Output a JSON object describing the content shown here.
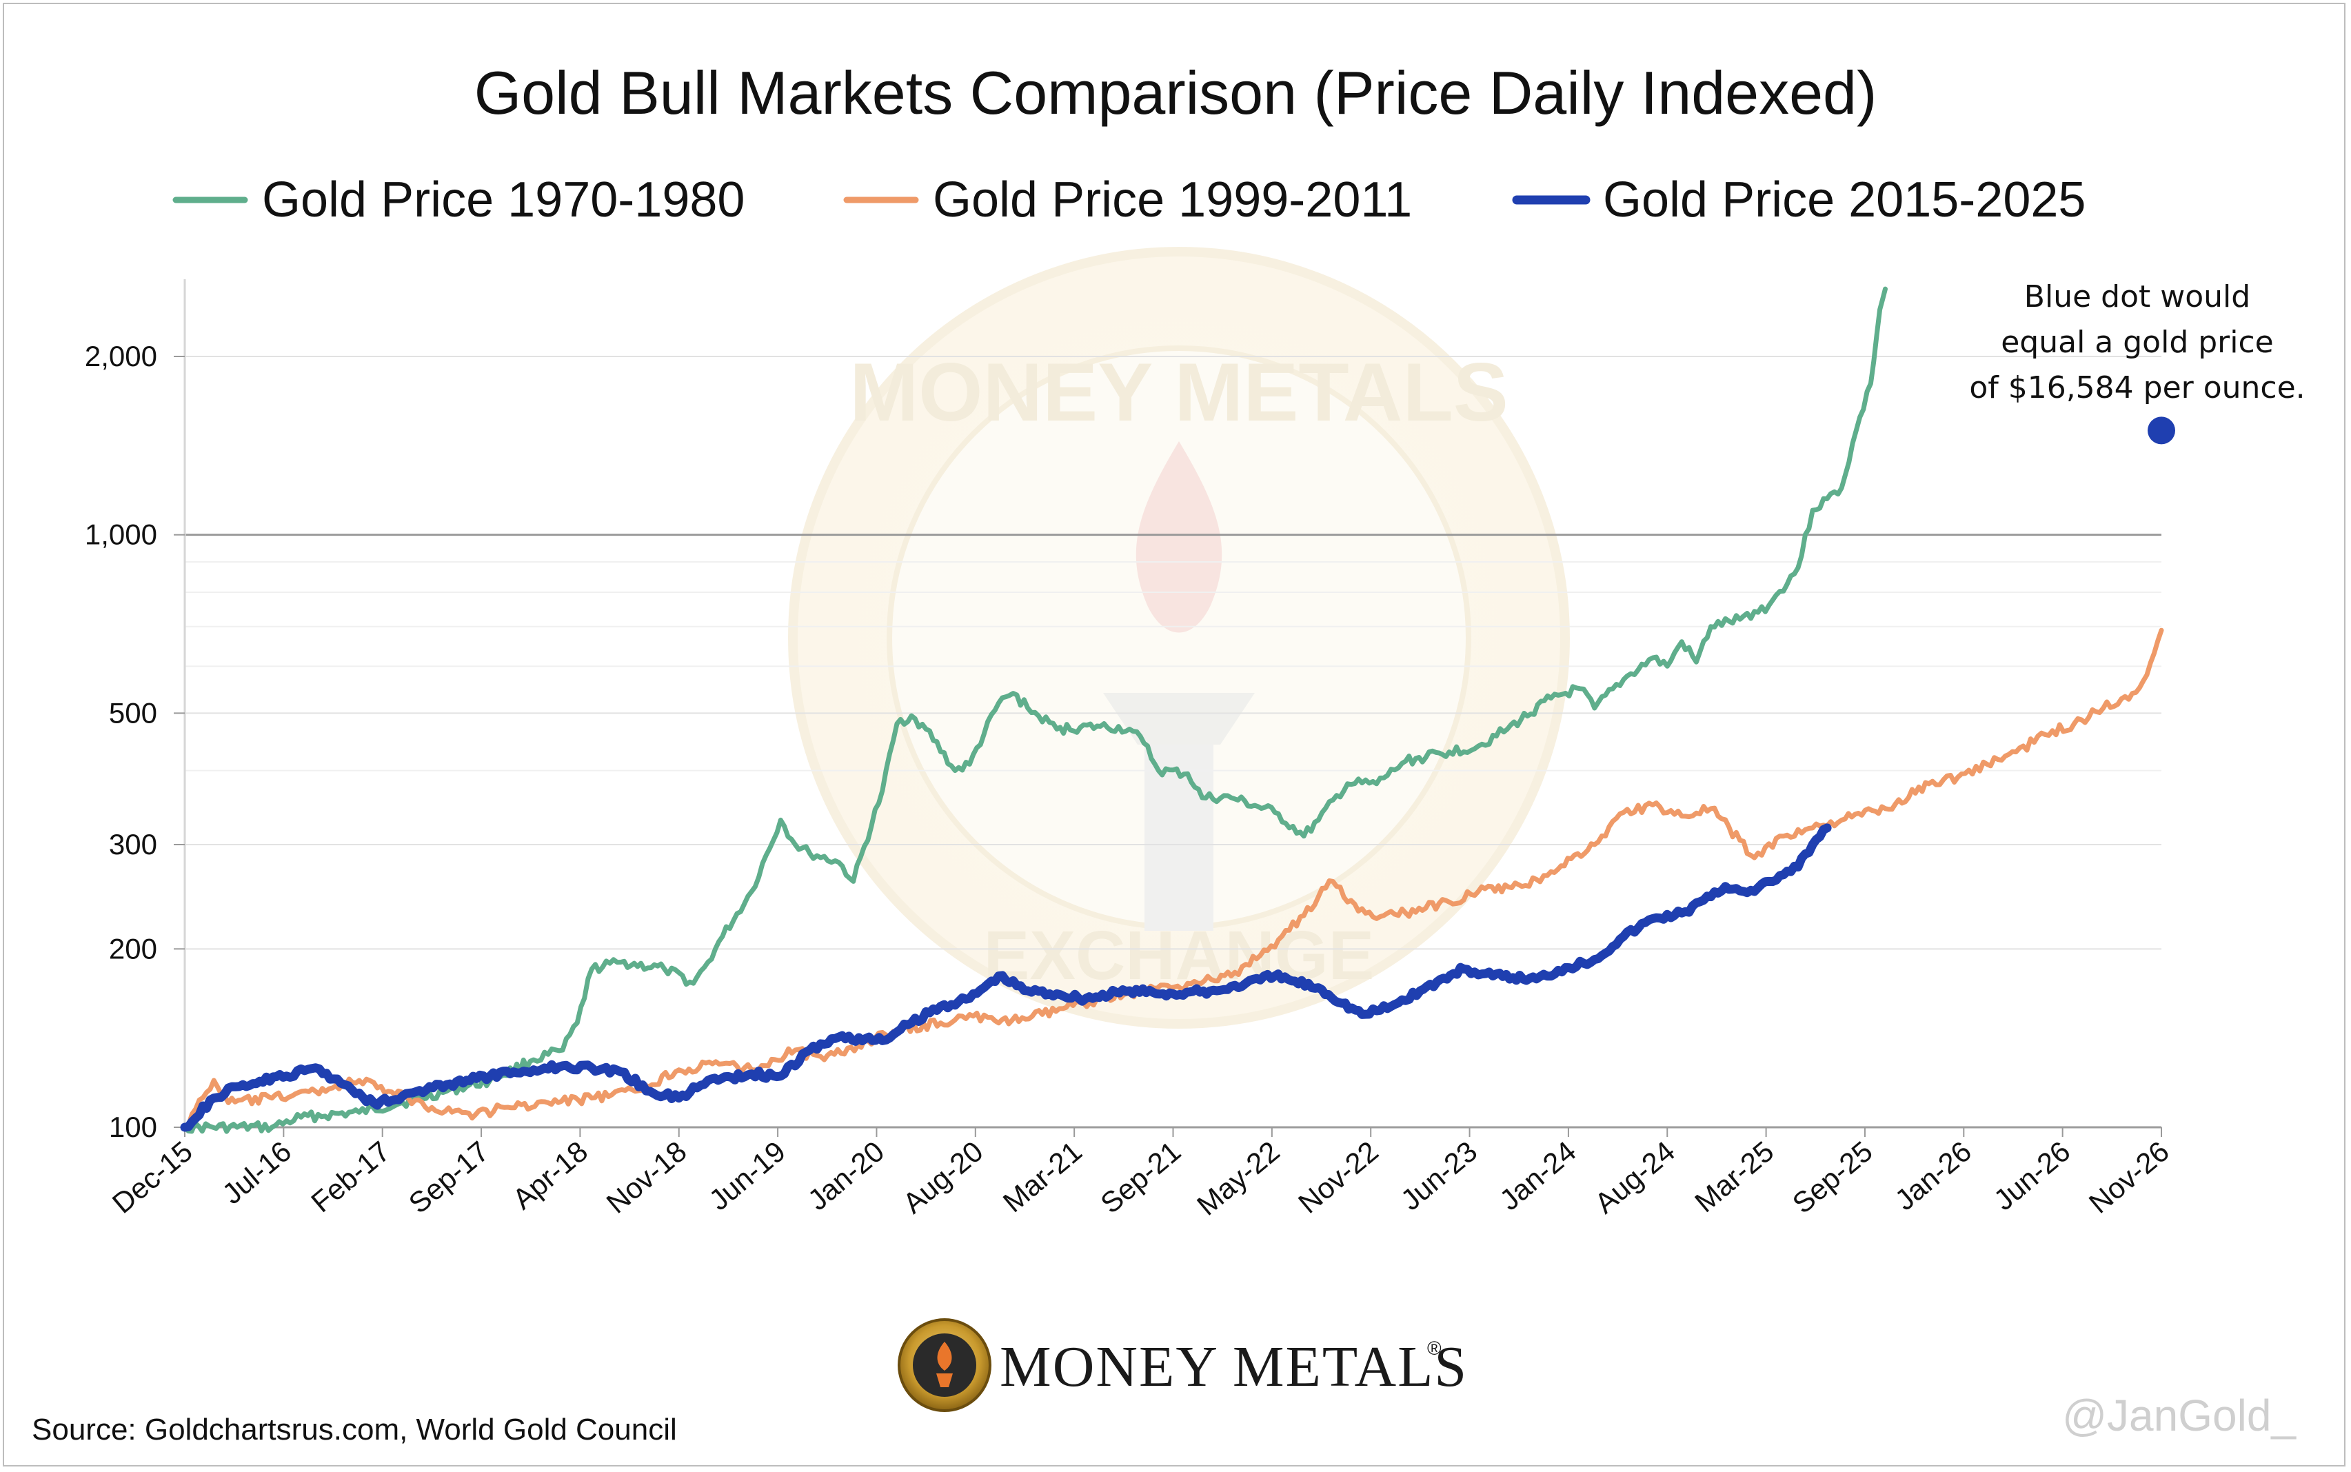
{
  "chart_data": {
    "type": "line",
    "title": "Gold Bull Markets Comparison (Price Daily Indexed)",
    "yscale": "log",
    "ylim": [
      100,
      2700
    ],
    "y_ticks": [
      100,
      200,
      300,
      500,
      1000,
      2000
    ],
    "y_tick_labels": [
      "100",
      "200",
      "300",
      "500",
      "1,000",
      "2,000"
    ],
    "x_tick_labels": [
      "Dec-15",
      "Jul-16",
      "Feb-17",
      "Sep-17",
      "Apr-18",
      "Nov-18",
      "Jun-19",
      "Jan-20",
      "Aug-20",
      "Mar-21",
      "Sep-21",
      "May-22",
      "Nov-22",
      "Jun-23",
      "Jan-24",
      "Aug-24",
      "Mar-25",
      "Sep-25",
      "Jan-26",
      "Jun-26",
      "Nov-26"
    ],
    "x_range": [
      "2015-12",
      "2027-04"
    ],
    "legend_position": "top",
    "grid": true,
    "series": [
      {
        "name": "Gold Price 1970-1980",
        "color": "#5fae8c",
        "points": [
          [
            "2015-12",
            100
          ],
          [
            "2016-06",
            100
          ],
          [
            "2016-08",
            104
          ],
          [
            "2016-12",
            106
          ],
          [
            "2017-03",
            110
          ],
          [
            "2017-06",
            115
          ],
          [
            "2017-09",
            120
          ],
          [
            "2017-12",
            130
          ],
          [
            "2018-02",
            135
          ],
          [
            "2018-03",
            150
          ],
          [
            "2018-04",
            185
          ],
          [
            "2018-06",
            190
          ],
          [
            "2018-09",
            185
          ],
          [
            "2018-11",
            175
          ],
          [
            "2018-12",
            190
          ],
          [
            "2019-01",
            210
          ],
          [
            "2019-03",
            250
          ],
          [
            "2019-05",
            330
          ],
          [
            "2019-06",
            300
          ],
          [
            "2019-07",
            290
          ],
          [
            "2019-09",
            280
          ],
          [
            "2019-10",
            260
          ],
          [
            "2019-12",
            370
          ],
          [
            "2020-01",
            480
          ],
          [
            "2020-02",
            495
          ],
          [
            "2020-03",
            470
          ],
          [
            "2020-05",
            400
          ],
          [
            "2020-06",
            410
          ],
          [
            "2020-08",
            520
          ],
          [
            "2020-09",
            540
          ],
          [
            "2020-10",
            510
          ],
          [
            "2020-12",
            470
          ],
          [
            "2021-03",
            475
          ],
          [
            "2021-05",
            470
          ],
          [
            "2021-06",
            445
          ],
          [
            "2021-07",
            400
          ],
          [
            "2021-09",
            395
          ],
          [
            "2021-10",
            360
          ],
          [
            "2021-12",
            360
          ],
          [
            "2022-03",
            340
          ],
          [
            "2022-05",
            310
          ],
          [
            "2022-06",
            330
          ],
          [
            "2022-08",
            380
          ],
          [
            "2022-10",
            380
          ],
          [
            "2022-12",
            415
          ],
          [
            "2023-03",
            430
          ],
          [
            "2023-05",
            440
          ],
          [
            "2023-07",
            470
          ],
          [
            "2023-10",
            530
          ],
          [
            "2023-12",
            550
          ],
          [
            "2024-01",
            510
          ],
          [
            "2024-03",
            570
          ],
          [
            "2024-05",
            620
          ],
          [
            "2024-06",
            600
          ],
          [
            "2024-07",
            660
          ],
          [
            "2024-08",
            610
          ],
          [
            "2024-09",
            700
          ],
          [
            "2024-11",
            720
          ],
          [
            "2025-01",
            760
          ],
          [
            "2025-03",
            880
          ],
          [
            "2025-04",
            1100
          ],
          [
            "2025-05",
            1150
          ],
          [
            "2025-06",
            1200
          ],
          [
            "2025-07",
            1500
          ],
          [
            "2025-08",
            1800
          ],
          [
            "2025-08-20",
            2400
          ],
          [
            "2025-09-01",
            2600
          ]
        ]
      },
      {
        "name": "Gold Price 1999-2011",
        "color": "#ef9a68",
        "points": [
          [
            "2015-12",
            100
          ],
          [
            "2016-02",
            120
          ],
          [
            "2016-03",
            110
          ],
          [
            "2016-06",
            112
          ],
          [
            "2016-09",
            115
          ],
          [
            "2016-12",
            120
          ],
          [
            "2017-02",
            115
          ],
          [
            "2017-05",
            108
          ],
          [
            "2017-08",
            105
          ],
          [
            "2017-10",
            108
          ],
          [
            "2018-01",
            110
          ],
          [
            "2018-04",
            112
          ],
          [
            "2018-07",
            115
          ],
          [
            "2018-10",
            125
          ],
          [
            "2019-01",
            128
          ],
          [
            "2019-03",
            125
          ],
          [
            "2019-06",
            135
          ],
          [
            "2019-08",
            130
          ],
          [
            "2019-11",
            140
          ],
          [
            "2020-01",
            145
          ],
          [
            "2020-04",
            150
          ],
          [
            "2020-06",
            155
          ],
          [
            "2020-08",
            150
          ],
          [
            "2020-11",
            155
          ],
          [
            "2021-03",
            165
          ],
          [
            "2021-06",
            170
          ],
          [
            "2021-09",
            175
          ],
          [
            "2021-12",
            180
          ],
          [
            "2022-02",
            195
          ],
          [
            "2022-04",
            215
          ],
          [
            "2022-06",
            245
          ],
          [
            "2022-07",
            260
          ],
          [
            "2022-08",
            240
          ],
          [
            "2022-10",
            225
          ],
          [
            "2022-12",
            230
          ],
          [
            "2023-03",
            240
          ],
          [
            "2023-05",
            250
          ],
          [
            "2023-08",
            255
          ],
          [
            "2023-10",
            270
          ],
          [
            "2024-01",
            300
          ],
          [
            "2024-03",
            340
          ],
          [
            "2024-05",
            350
          ],
          [
            "2024-07",
            335
          ],
          [
            "2024-09",
            345
          ],
          [
            "2024-11",
            305
          ],
          [
            "2024-12",
            285
          ],
          [
            "2025-02",
            310
          ],
          [
            "2025-04",
            320
          ],
          [
            "2025-06",
            330
          ],
          [
            "2025-09",
            345
          ],
          [
            "2025-12",
            380
          ],
          [
            "2026-02",
            390
          ],
          [
            "2026-04",
            410
          ],
          [
            "2026-06",
            430
          ],
          [
            "2026-08",
            460
          ],
          [
            "2026-10",
            480
          ],
          [
            "2026-12",
            510
          ],
          [
            "2027-02",
            540
          ],
          [
            "2027-03",
            580
          ],
          [
            "2027-04",
            690
          ]
        ]
      },
      {
        "name": "Gold Price 2015-2025",
        "color": "#1f3fb0",
        "points": [
          [
            "2015-12",
            100
          ],
          [
            "2016-02",
            112
          ],
          [
            "2016-04",
            118
          ],
          [
            "2016-07",
            122
          ],
          [
            "2016-09",
            126
          ],
          [
            "2016-11",
            118
          ],
          [
            "2017-01",
            110
          ],
          [
            "2017-03",
            113
          ],
          [
            "2017-06",
            118
          ],
          [
            "2017-09",
            122
          ],
          [
            "2017-12",
            125
          ],
          [
            "2018-02",
            127
          ],
          [
            "2018-04",
            126
          ],
          [
            "2018-06",
            124
          ],
          [
            "2018-08",
            115
          ],
          [
            "2018-10",
            112
          ],
          [
            "2018-12",
            120
          ],
          [
            "2019-03",
            123
          ],
          [
            "2019-05",
            122
          ],
          [
            "2019-07",
            135
          ],
          [
            "2019-09",
            142
          ],
          [
            "2019-12",
            140
          ],
          [
            "2020-02",
            150
          ],
          [
            "2020-04",
            160
          ],
          [
            "2020-06",
            165
          ],
          [
            "2020-08",
            180
          ],
          [
            "2020-10",
            170
          ],
          [
            "2020-12",
            168
          ],
          [
            "2021-02",
            165
          ],
          [
            "2021-05",
            170
          ],
          [
            "2021-08",
            168
          ],
          [
            "2021-11",
            170
          ],
          [
            "2022-01",
            175
          ],
          [
            "2022-03",
            180
          ],
          [
            "2022-06",
            172
          ],
          [
            "2022-09",
            155
          ],
          [
            "2022-11",
            160
          ],
          [
            "2023-01",
            170
          ],
          [
            "2023-04",
            185
          ],
          [
            "2023-06",
            180
          ],
          [
            "2023-09",
            178
          ],
          [
            "2023-11",
            186
          ],
          [
            "2024-01",
            192
          ],
          [
            "2024-03",
            210
          ],
          [
            "2024-05",
            225
          ],
          [
            "2024-07",
            230
          ],
          [
            "2024-09",
            245
          ],
          [
            "2024-10",
            255
          ],
          [
            "2024-12",
            250
          ],
          [
            "2025-01",
            260
          ],
          [
            "2025-03",
            275
          ],
          [
            "2025-04",
            300
          ],
          [
            "2025-05",
            320
          ]
        ]
      }
    ],
    "projection_point": {
      "x": "2027-04",
      "y": 1500,
      "color": "#1f3fb0"
    },
    "annotation": [
      "Blue dot would",
      "equal a gold price",
      "of $16,584 per ounce."
    ]
  },
  "watermark": {
    "top_text": "MONEY METALS",
    "bottom_text": "EXCHANGE"
  },
  "branding": {
    "logo_text": "MONEY METALS",
    "logo_mark": "®",
    "badge_top": "MONEY METALS",
    "badge_bottom": "EXCHANGE"
  },
  "source": "Source: Goldchartsrus.com, World Gold Council",
  "handle": "@JanGold_"
}
